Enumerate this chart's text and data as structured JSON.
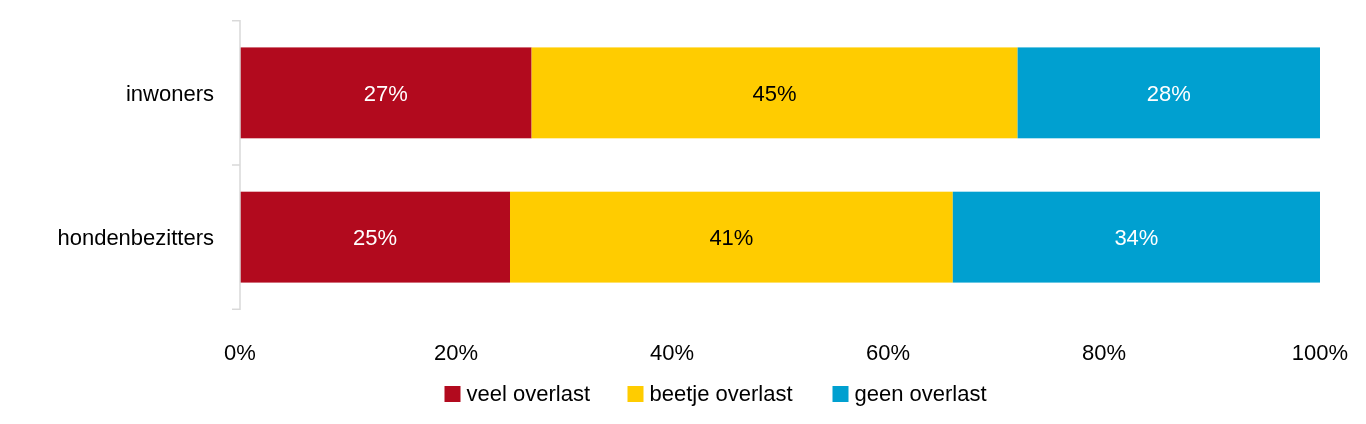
{
  "chart_data": {
    "type": "bar",
    "orientation": "horizontal",
    "stacked": true,
    "categories": [
      "inwoners",
      "hondenbezitters"
    ],
    "series": [
      {
        "name": "veel overlast",
        "color": "#b20a1e",
        "values": [
          27,
          25
        ],
        "value_labels": [
          "27%",
          "25%"
        ]
      },
      {
        "name": "beetje overlast",
        "color": "#ffcc00",
        "values": [
          45,
          41
        ],
        "value_labels": [
          "45%",
          "41%"
        ]
      },
      {
        "name": "geen overlast",
        "color": "#00a0d0",
        "values": [
          28,
          34
        ],
        "value_labels": [
          "28%",
          "34%"
        ]
      }
    ],
    "xlim": [
      0,
      100
    ],
    "xticks": [
      {
        "value": 0,
        "label": "0%"
      },
      {
        "value": 20,
        "label": "20%"
      },
      {
        "value": 40,
        "label": "40%"
      },
      {
        "value": 60,
        "label": "60%"
      },
      {
        "value": 80,
        "label": "80%"
      },
      {
        "value": 100,
        "label": "100%"
      }
    ],
    "grid": false,
    "legend": "bottom"
  }
}
